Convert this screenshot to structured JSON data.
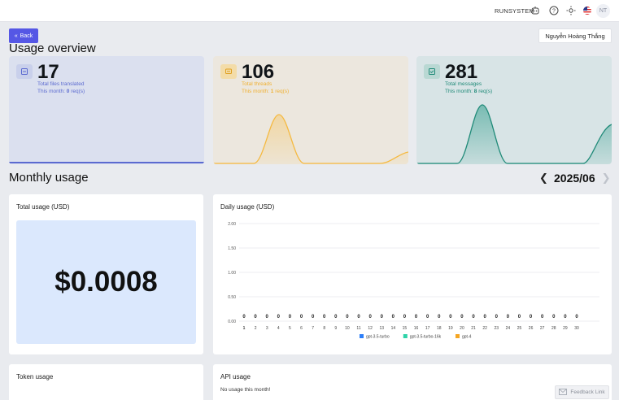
{
  "header": {
    "brand": "RUNSYSTEM",
    "avatar_initials": "NT",
    "icons": [
      "robot-icon",
      "help-icon",
      "theme-icon",
      "us-flag-icon"
    ]
  },
  "toolbar": {
    "back_label": "Back",
    "user_name": "Nguyễn Hoàng Thắng"
  },
  "overview": {
    "title": "Usage overview",
    "cards": [
      {
        "value": "17",
        "label": "Total files translated",
        "month_prefix": "This month: ",
        "month_value": "0",
        "month_suffix": " req(s)",
        "accent": "#5b6ad0",
        "bg": "#dbe0ef"
      },
      {
        "value": "106",
        "label": "Total threads",
        "month_prefix": "This month: ",
        "month_value": "1",
        "month_suffix": " req(s)",
        "accent": "#f5b940",
        "bg": "#ece7de"
      },
      {
        "value": "281",
        "label": "Total messages",
        "month_prefix": "This month: ",
        "month_value": "8",
        "month_suffix": " req(s)",
        "accent": "#2a9a88",
        "bg": "#d8e4e6"
      }
    ]
  },
  "monthly": {
    "title": "Monthly usage",
    "month": "2025/06",
    "total_title": "Total usage (USD)",
    "total_value": "$0.0008",
    "daily_title": "Daily usage (USD)",
    "token_title": "Token usage",
    "api_title": "API usage",
    "api_empty": "No usage this month!"
  },
  "feedback_label": "Feedback Link",
  "chart_data": {
    "type": "bar",
    "title": "Daily usage (USD)",
    "categories": [
      "1",
      "2",
      "3",
      "4",
      "5",
      "6",
      "7",
      "8",
      "9",
      "10",
      "11",
      "12",
      "13",
      "14",
      "15",
      "16",
      "17",
      "18",
      "19",
      "20",
      "21",
      "22",
      "23",
      "24",
      "25",
      "26",
      "27",
      "28",
      "29",
      "30"
    ],
    "series": [
      {
        "name": "gpt-3.5-turbo",
        "color": "#2d7ff9",
        "values": [
          0,
          0,
          0,
          0,
          0,
          0,
          0,
          0,
          0,
          0,
          0,
          0,
          0,
          0,
          0,
          0,
          0,
          0,
          0,
          0,
          0,
          0,
          0,
          0,
          0,
          0,
          0,
          0,
          0,
          0
        ]
      },
      {
        "name": "gpt-3.5-turbo-16k",
        "color": "#2ed3a8",
        "values": [
          0,
          0,
          0,
          0,
          0,
          0,
          0,
          0,
          0,
          0,
          0,
          0,
          0,
          0,
          0,
          0,
          0,
          0,
          0,
          0,
          0,
          0,
          0,
          0,
          0,
          0,
          0,
          0,
          0,
          0
        ]
      },
      {
        "name": "gpt-4",
        "color": "#f5a623",
        "values": [
          0,
          0,
          0,
          0,
          0,
          0,
          0,
          0,
          0,
          0,
          0,
          0,
          0,
          0,
          0,
          0,
          0,
          0,
          0,
          0,
          0,
          0,
          0,
          0,
          0,
          0,
          0,
          0,
          0,
          0
        ]
      }
    ],
    "daily_totals": [
      "0",
      "0",
      "0",
      "0",
      "0",
      "0",
      "0",
      "0",
      "0",
      "0",
      "0",
      "0",
      "0",
      "0",
      "0",
      "0",
      "0",
      "0",
      "0",
      "0",
      "0",
      "0",
      "0",
      "0",
      "0",
      "0",
      "0",
      "0",
      "0",
      "0"
    ],
    "y_ticks": [
      "2.00",
      "1.50",
      "1.00",
      "0.50",
      "0.00"
    ],
    "ylim": [
      0,
      2
    ],
    "grid": true,
    "legend_position": "bottom"
  }
}
